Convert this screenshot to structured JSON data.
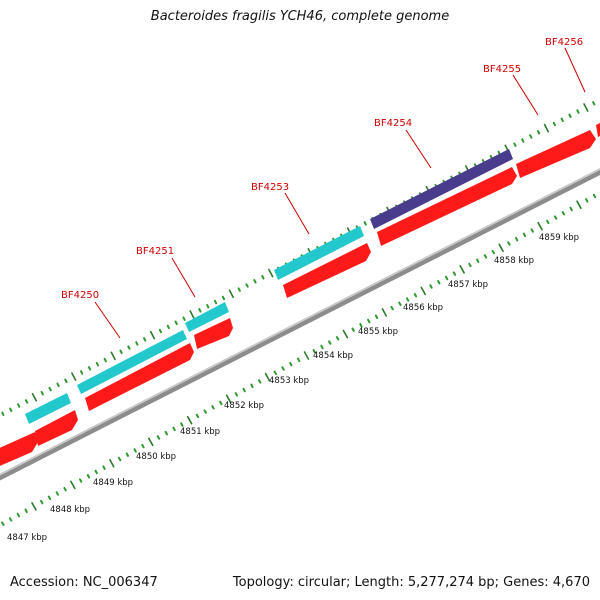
{
  "title": "Bacteroides fragilis YCH46, complete genome",
  "footer": {
    "accession": "Accession: NC_006347",
    "summary": "Topology: circular; Length: 5,277,274 bp; Genes: 4,670"
  },
  "colors": {
    "backbone": "#8c8c8c",
    "forward_gene": "#ff1a1a",
    "cds_cyan": "#22c8cc",
    "cds_purple": "#4a3c8c",
    "gene_label": "#d00000",
    "tick_dot": "#2f9a2f",
    "tick_mark": "#2a7a2a"
  },
  "gene_labels": [
    "BF4250",
    "BF4251",
    "BF4253",
    "BF4254",
    "BF4255",
    "BF4256"
  ],
  "kbp_labels": [
    "4847 kbp",
    "4848 kbp",
    "4849 kbp",
    "4850 kbp",
    "4851 kbp",
    "4852 kbp",
    "4853 kbp",
    "4854 kbp",
    "4855 kbp",
    "4856 kbp",
    "4857 kbp",
    "4858 kbp",
    "4859 kbp"
  ]
}
